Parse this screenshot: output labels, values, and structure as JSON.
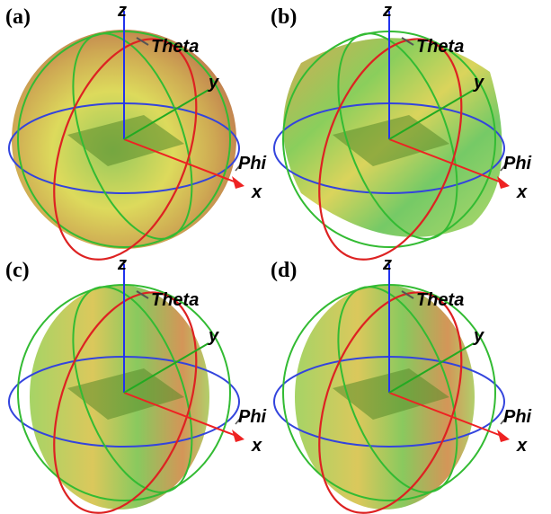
{
  "panels": [
    {
      "label": "(a)",
      "axes": {
        "z": "z",
        "y": "y",
        "x": "x",
        "theta": "Theta",
        "phi": "Phi"
      }
    },
    {
      "label": "(b)",
      "axes": {
        "z": "z",
        "y": "y",
        "x": "x",
        "theta": "Theta",
        "phi": "Phi"
      }
    },
    {
      "label": "(c)",
      "axes": {
        "z": "z",
        "y": "y",
        "x": "x",
        "theta": "Theta",
        "phi": "Phi"
      }
    },
    {
      "label": "(d)",
      "axes": {
        "z": "z",
        "y": "y",
        "x": "x",
        "theta": "Theta",
        "phi": "Phi"
      }
    }
  ]
}
